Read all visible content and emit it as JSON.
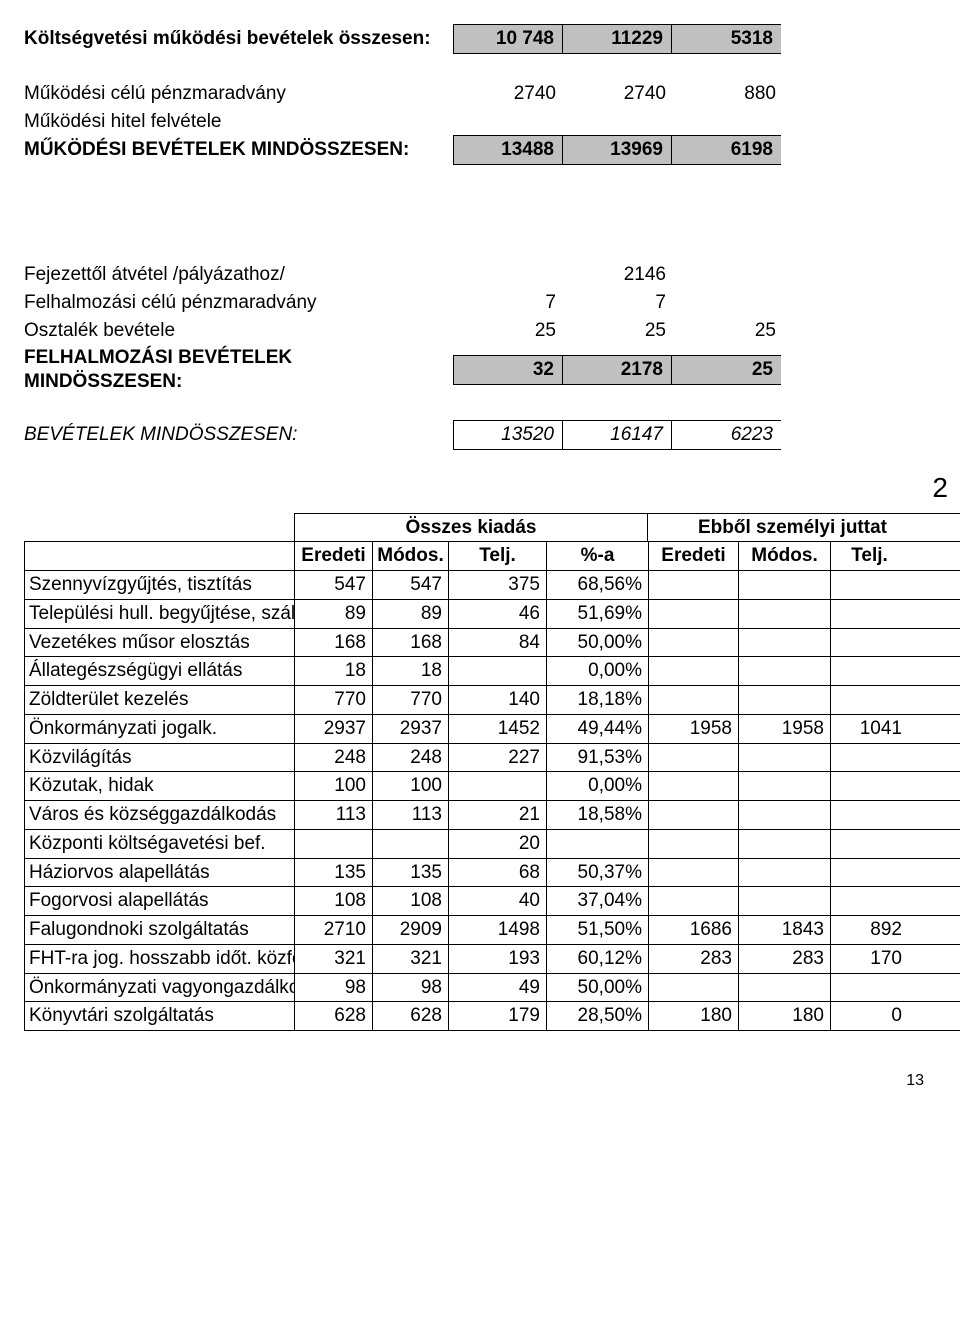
{
  "top": {
    "rows": [
      {
        "label": "Költségvetési működési bevételek összesen:",
        "values": [
          "10 748",
          "11229",
          "5318"
        ],
        "bold": true,
        "shade": true,
        "bordered": true,
        "openRight": true
      },
      {
        "label": "",
        "values": [
          "",
          "",
          ""
        ],
        "bordered": false
      },
      {
        "label": "Működési célú pénzmaradvány",
        "values": [
          "2740",
          "2740",
          "880"
        ]
      },
      {
        "label": "Működési hitel felvétele",
        "values": [
          "",
          "",
          ""
        ]
      },
      {
        "label": "MŰKÖDÉSI BEVÉTELEK MINDÖSSZESEN:",
        "values": [
          "13488",
          "13969",
          "6198"
        ],
        "bold": true,
        "shade": true,
        "bordered": true,
        "openRight": true
      },
      {
        "spacer": "lg"
      },
      {
        "spacer": "lg"
      },
      {
        "label": "Fejezettől átvétel /pályázathoz/",
        "values": [
          "",
          "2146",
          ""
        ]
      },
      {
        "label": "Felhalmozási célú pénzmaradvány",
        "values": [
          "7",
          "7",
          ""
        ]
      },
      {
        "label": "Osztalék bevétele",
        "values": [
          "25",
          "25",
          "25"
        ]
      },
      {
        "label": "FELHALMOZÁSI BEVÉTELEK MINDÖSSZESEN:",
        "values": [
          "32",
          "2178",
          "25"
        ],
        "bold": true,
        "shade": true,
        "bordered": true,
        "openRight": true
      },
      {
        "spacer": "sm"
      },
      {
        "label": "BEVÉTELEK MINDÖSSZESEN:",
        "values": [
          "13520",
          "16147",
          "6223"
        ],
        "italic": true,
        "bordered": true,
        "openRight": true
      }
    ]
  },
  "page_number_big": "2",
  "table2": {
    "group_headers": [
      "Összes kiadás",
      "Ebből személyi juttat"
    ],
    "col_headers": [
      "Eredeti",
      "Módos.",
      "Telj.",
      "%-a",
      "Eredeti",
      "Módos.",
      "Telj."
    ],
    "rows": [
      {
        "label": "Szennyvízgyűjtés, tisztítás",
        "c": [
          "547",
          "547",
          "375",
          "68,56%",
          "",
          "",
          ""
        ]
      },
      {
        "label": "Települési hull. begyűjtése, száll.",
        "c": [
          "89",
          "89",
          "46",
          "51,69%",
          "",
          "",
          ""
        ]
      },
      {
        "label": "Vezetékes műsor elosztás",
        "c": [
          "168",
          "168",
          "84",
          "50,00%",
          "",
          "",
          ""
        ]
      },
      {
        "label": "Állategészségügyi ellátás",
        "c": [
          "18",
          "18",
          "",
          "0,00%",
          "",
          "",
          ""
        ]
      },
      {
        "label": "Zöldterület kezelés",
        "c": [
          "770",
          "770",
          "140",
          "18,18%",
          "",
          "",
          ""
        ]
      },
      {
        "label": "Önkormányzati jogalk.",
        "c": [
          "2937",
          "2937",
          "1452",
          "49,44%",
          "1958",
          "1958",
          "1041"
        ]
      },
      {
        "label": "Közvilágítás",
        "c": [
          "248",
          "248",
          "227",
          "91,53%",
          "",
          "",
          ""
        ]
      },
      {
        "label": "Közutak, hidak",
        "c": [
          "100",
          "100",
          "",
          "0,00%",
          "",
          "",
          ""
        ]
      },
      {
        "label": "Város és községgazdálkodás",
        "c": [
          "113",
          "113",
          "21",
          "18,58%",
          "",
          "",
          ""
        ]
      },
      {
        "label": "Központi költségavetési bef.",
        "c": [
          "",
          "",
          "20",
          "",
          "",
          "",
          ""
        ]
      },
      {
        "label": "Háziorvos alapellátás",
        "c": [
          "135",
          "135",
          "68",
          "50,37%",
          "",
          "",
          ""
        ]
      },
      {
        "label": "Fogorvosi alapellátás",
        "c": [
          "108",
          "108",
          "40",
          "37,04%",
          "",
          "",
          ""
        ]
      },
      {
        "label": "Falugondnoki szolgáltatás",
        "c": [
          "2710",
          "2909",
          "1498",
          "51,50%",
          "1686",
          "1843",
          "892"
        ]
      },
      {
        "label": "FHT-ra jog. hosszabb időt. közfogl.",
        "c": [
          "321",
          "321",
          "193",
          "60,12%",
          "283",
          "283",
          "170"
        ]
      },
      {
        "label": "Önkormányzati vagyongazdálkodás",
        "c": [
          "98",
          "98",
          "49",
          "50,00%",
          "",
          "",
          ""
        ]
      },
      {
        "label": "Könyvtári szolgáltatás",
        "c": [
          "628",
          "628",
          "179",
          "28,50%",
          "180",
          "180",
          "0"
        ]
      }
    ]
  },
  "footer_page": "13",
  "colors": {
    "shade_bg": "#c0c0c0",
    "border": "#000000",
    "text": "#000000",
    "background": "#ffffff"
  }
}
